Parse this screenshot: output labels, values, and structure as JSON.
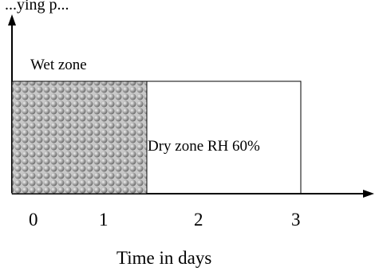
{
  "top_cut_text": "...ying p...",
  "zones": {
    "wet": {
      "label": "Wet zone",
      "start_day": 0,
      "end_day": 1.5,
      "fill": "hatched-dots"
    },
    "dry": {
      "label": "Dry zone RH 60%",
      "start_day": 1.5,
      "end_day": 3
    }
  },
  "x_axis": {
    "title": "Time in days",
    "ticks": [
      "0",
      "1",
      "2",
      "3"
    ]
  },
  "colors": {
    "line": "#000000",
    "dot_fill": "#9a9a9a",
    "dot_highlight": "#e6e6e6",
    "background": "#ffffff"
  }
}
